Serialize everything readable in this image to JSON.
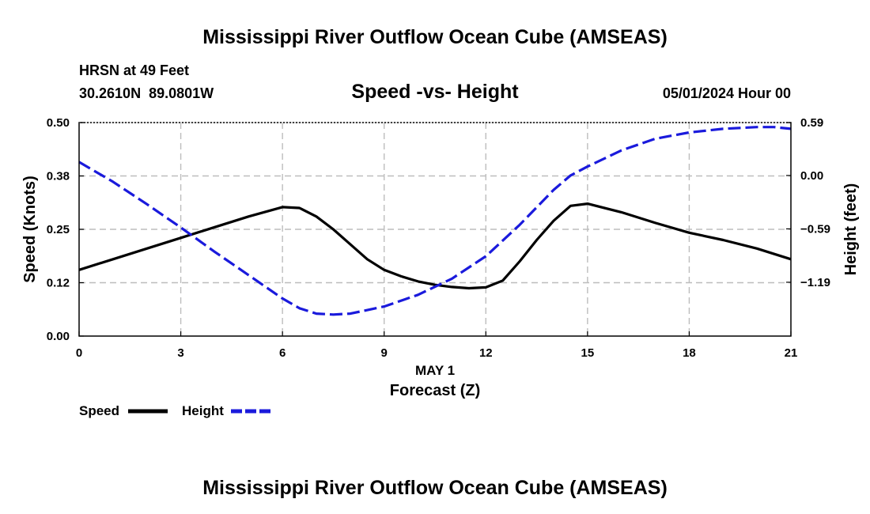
{
  "chart_data": {
    "type": "line",
    "title": "Mississippi River Outflow Ocean Cube (AMSEAS)",
    "subtitle": "Speed -vs- Height",
    "station": "HRSN at 49 Feet",
    "location": "30.2610N  89.0801W",
    "datetime": "05/01/2024 Hour 00",
    "xlabel": "Forecast (Z)",
    "xlabel_date": "MAY 1",
    "ylabel_left": "Speed (Knots)",
    "ylabel_right": "Height (feet)",
    "x_ticks": [
      "0",
      "3",
      "6",
      "9",
      "12",
      "15",
      "18",
      "21"
    ],
    "y_left_ticks": [
      "0.00",
      "0.12",
      "0.25",
      "0.38",
      "0.50"
    ],
    "y_right_ticks": [
      "−1.19",
      "−0.59",
      "0.00",
      "0.59"
    ],
    "xlim": [
      0,
      21
    ],
    "ylim_left": [
      0,
      0.5
    ],
    "ylim_right": [
      -1.79,
      0.59
    ],
    "grid": true,
    "legend": {
      "position": "bottom-left",
      "entries": [
        {
          "label": "Speed",
          "color": "#000000",
          "style": "solid"
        },
        {
          "label": "Height",
          "color": "#1a1adc",
          "style": "dashed"
        }
      ]
    },
    "series": [
      {
        "name": "Speed",
        "axis": "left",
        "color": "#000000",
        "style": "solid",
        "x": [
          0,
          1,
          2,
          3,
          4,
          5,
          6,
          6.5,
          7,
          7.5,
          8,
          8.5,
          9,
          9.5,
          10,
          10.5,
          11,
          11.5,
          12,
          12.5,
          13,
          13.5,
          14,
          14.5,
          15,
          16,
          17,
          18,
          19,
          20,
          21
        ],
        "values": [
          0.155,
          0.18,
          0.205,
          0.23,
          0.255,
          0.28,
          0.302,
          0.3,
          0.28,
          0.25,
          0.215,
          0.18,
          0.155,
          0.14,
          0.128,
          0.12,
          0.115,
          0.112,
          0.114,
          0.13,
          0.175,
          0.225,
          0.27,
          0.305,
          0.31,
          0.29,
          0.265,
          0.242,
          0.225,
          0.205,
          0.18
        ]
      },
      {
        "name": "Height",
        "axis": "right",
        "color": "#1a1adc",
        "style": "dashed",
        "x": [
          0,
          1,
          2,
          3,
          4,
          5,
          6,
          6.5,
          7,
          7.5,
          8,
          9,
          10,
          11,
          12,
          13,
          14,
          14.5,
          15,
          16,
          17,
          18,
          19,
          20,
          20.5,
          21
        ],
        "values": [
          0.15,
          -0.07,
          -0.32,
          -0.58,
          -0.85,
          -1.11,
          -1.37,
          -1.48,
          -1.54,
          -1.55,
          -1.54,
          -1.46,
          -1.33,
          -1.15,
          -0.9,
          -0.55,
          -0.16,
          0.0,
          0.1,
          0.28,
          0.41,
          0.48,
          0.52,
          0.54,
          0.54,
          0.52
        ]
      }
    ]
  },
  "footer_title": "Mississippi River Outflow Ocean Cube (AMSEAS)"
}
